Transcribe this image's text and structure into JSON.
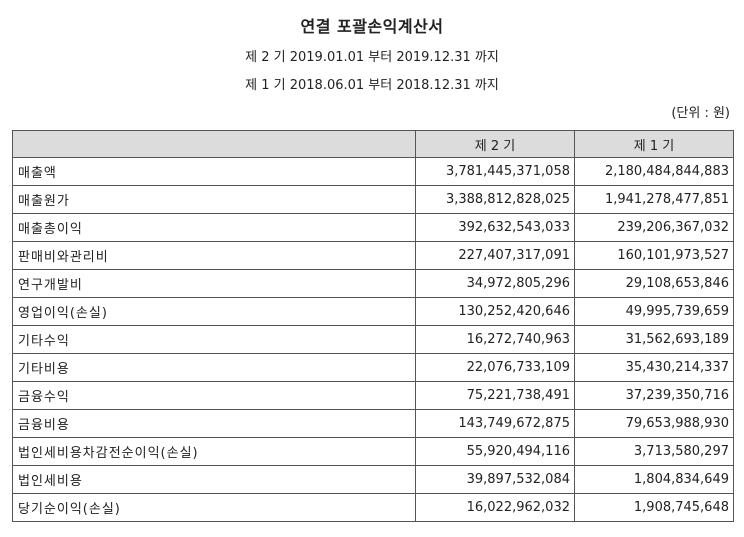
{
  "statement": {
    "title": "연결 포괄손익계산서",
    "period_current": "제 2 기 2019.01.01 부터 2019.12.31 까지",
    "period_previous": "제 1 기 2018.06.01 부터 2018.12.31 까지",
    "unit": "(단위 : 원)"
  },
  "table": {
    "headers": [
      "",
      "제 2 기",
      "제 1 기"
    ],
    "rows": [
      {
        "label": "매출액",
        "current": "3,781,445,371,058",
        "previous": "2,180,484,844,883"
      },
      {
        "label": "매출원가",
        "current": "3,388,812,828,025",
        "previous": "1,941,278,477,851"
      },
      {
        "label": "매출총이익",
        "current": "392,632,543,033",
        "previous": "239,206,367,032"
      },
      {
        "label": "판매비와관리비",
        "current": "227,407,317,091",
        "previous": "160,101,973,527"
      },
      {
        "label": "연구개발비",
        "current": "34,972,805,296",
        "previous": "29,108,653,846"
      },
      {
        "label": "영업이익(손실)",
        "current": "130,252,420,646",
        "previous": "49,995,739,659"
      },
      {
        "label": "기타수익",
        "current": "16,272,740,963",
        "previous": "31,562,693,189"
      },
      {
        "label": "기타비용",
        "current": "22,076,733,109",
        "previous": "35,430,214,337"
      },
      {
        "label": "금융수익",
        "current": "75,221,738,491",
        "previous": "37,239,350,716"
      },
      {
        "label": "금융비용",
        "current": "143,749,672,875",
        "previous": "79,653,988,930"
      },
      {
        "label": "법인세비용차감전순이익(손실)",
        "current": "55,920,494,116",
        "previous": "3,713,580,297"
      },
      {
        "label": "법인세비용",
        "current": "39,897,532,084",
        "previous": "1,804,834,649"
      },
      {
        "label": "당기순이익(손실)",
        "current": "16,022,962,032",
        "previous": "1,908,745,648"
      }
    ]
  }
}
